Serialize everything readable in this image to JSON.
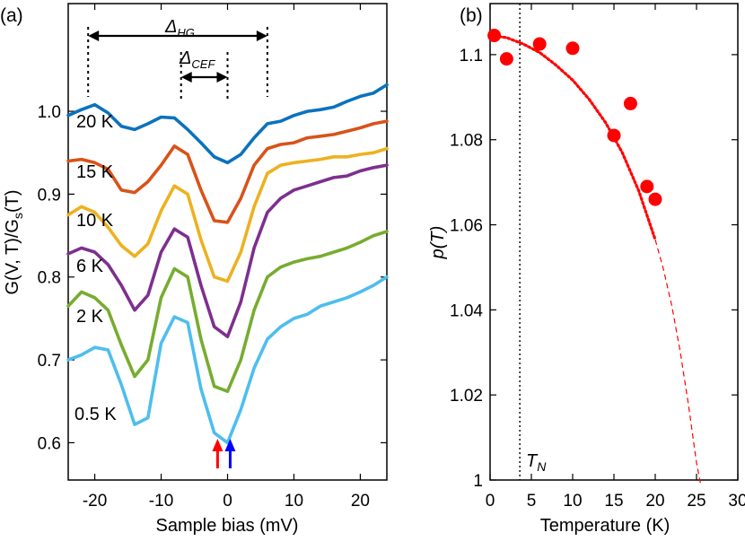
{
  "chart_data": [
    {
      "panel_label": "(a)",
      "type": "line",
      "xlabel": "Sample bias (mV)",
      "ylabel": "G(V, T)/G",
      "ylabel_sub": "s",
      "ylabel_tail": "(T)",
      "xlim": [
        -24,
        24
      ],
      "ylim": [
        0.555,
        1.13
      ],
      "xticks": [
        "-20",
        "-10",
        "0",
        "10",
        "20"
      ],
      "yticks": [
        "0.6",
        "0.7",
        "0.8",
        "0.9",
        "1.0"
      ],
      "annotations": {
        "delta_hg": "Δ",
        "delta_hg_sub": "HG",
        "delta_cef": "Δ",
        "delta_cef_sub": "CEF",
        "delta_hg_range": [
          -21,
          6
        ],
        "delta_cef_range": [
          -7,
          0
        ]
      },
      "series": [
        {
          "name": "20 K",
          "color": "#0b72bd",
          "points": [
            [
              -24,
              0.995
            ],
            [
              -22,
              1.002
            ],
            [
              -20,
              1.008
            ],
            [
              -18,
              0.998
            ],
            [
              -16,
              0.982
            ],
            [
              -14,
              0.978
            ],
            [
              -12,
              0.985
            ],
            [
              -10,
              0.993
            ],
            [
              -8,
              0.992
            ],
            [
              -6,
              0.978
            ],
            [
              -4,
              0.962
            ],
            [
              -2,
              0.945
            ],
            [
              0,
              0.938
            ],
            [
              2,
              0.948
            ],
            [
              4,
              0.968
            ],
            [
              6,
              0.985
            ],
            [
              8,
              0.988
            ],
            [
              10,
              0.995
            ],
            [
              12,
              1.0
            ],
            [
              14,
              1.002
            ],
            [
              16,
              1.005
            ],
            [
              18,
              1.012
            ],
            [
              20,
              1.018
            ],
            [
              22,
              1.022
            ],
            [
              24,
              1.032
            ]
          ]
        },
        {
          "name": "15 K",
          "color": "#d85319",
          "points": [
            [
              -24,
              0.94
            ],
            [
              -22,
              0.942
            ],
            [
              -20,
              0.938
            ],
            [
              -18,
              0.93
            ],
            [
              -16,
              0.905
            ],
            [
              -14,
              0.902
            ],
            [
              -12,
              0.915
            ],
            [
              -10,
              0.935
            ],
            [
              -8,
              0.958
            ],
            [
              -6,
              0.948
            ],
            [
              -4,
              0.905
            ],
            [
              -2,
              0.868
            ],
            [
              0,
              0.866
            ],
            [
              2,
              0.895
            ],
            [
              4,
              0.935
            ],
            [
              6,
              0.955
            ],
            [
              8,
              0.96
            ],
            [
              10,
              0.962
            ],
            [
              12,
              0.968
            ],
            [
              14,
              0.97
            ],
            [
              16,
              0.972
            ],
            [
              18,
              0.976
            ],
            [
              20,
              0.98
            ],
            [
              22,
              0.985
            ],
            [
              24,
              0.988
            ]
          ]
        },
        {
          "name": "10 K",
          "color": "#edb120",
          "points": [
            [
              -24,
              0.875
            ],
            [
              -22,
              0.885
            ],
            [
              -20,
              0.878
            ],
            [
              -18,
              0.86
            ],
            [
              -16,
              0.838
            ],
            [
              -14,
              0.825
            ],
            [
              -12,
              0.84
            ],
            [
              -10,
              0.88
            ],
            [
              -8,
              0.91
            ],
            [
              -6,
              0.9
            ],
            [
              -4,
              0.845
            ],
            [
              -2,
              0.8
            ],
            [
              0,
              0.795
            ],
            [
              2,
              0.83
            ],
            [
              4,
              0.885
            ],
            [
              6,
              0.925
            ],
            [
              8,
              0.935
            ],
            [
              10,
              0.938
            ],
            [
              12,
              0.94
            ],
            [
              14,
              0.942
            ],
            [
              16,
              0.945
            ],
            [
              18,
              0.945
            ],
            [
              20,
              0.948
            ],
            [
              22,
              0.95
            ],
            [
              24,
              0.955
            ]
          ]
        },
        {
          "name": "6 K",
          "color": "#7e2f8e",
          "points": [
            [
              -24,
              0.828
            ],
            [
              -22,
              0.835
            ],
            [
              -20,
              0.83
            ],
            [
              -18,
              0.815
            ],
            [
              -16,
              0.79
            ],
            [
              -14,
              0.76
            ],
            [
              -12,
              0.778
            ],
            [
              -10,
              0.83
            ],
            [
              -8,
              0.858
            ],
            [
              -6,
              0.848
            ],
            [
              -4,
              0.79
            ],
            [
              -2,
              0.74
            ],
            [
              0,
              0.728
            ],
            [
              2,
              0.77
            ],
            [
              4,
              0.835
            ],
            [
              6,
              0.878
            ],
            [
              8,
              0.895
            ],
            [
              10,
              0.905
            ],
            [
              12,
              0.91
            ],
            [
              14,
              0.915
            ],
            [
              16,
              0.92
            ],
            [
              18,
              0.922
            ],
            [
              20,
              0.928
            ],
            [
              22,
              0.932
            ],
            [
              24,
              0.935
            ]
          ]
        },
        {
          "name": "2 K",
          "color": "#77ac30",
          "points": [
            [
              -24,
              0.765
            ],
            [
              -22,
              0.782
            ],
            [
              -20,
              0.775
            ],
            [
              -18,
              0.76
            ],
            [
              -16,
              0.718
            ],
            [
              -14,
              0.68
            ],
            [
              -12,
              0.7
            ],
            [
              -10,
              0.775
            ],
            [
              -8,
              0.81
            ],
            [
              -6,
              0.8
            ],
            [
              -4,
              0.725
            ],
            [
              -2,
              0.668
            ],
            [
              0,
              0.662
            ],
            [
              2,
              0.7
            ],
            [
              4,
              0.76
            ],
            [
              6,
              0.8
            ],
            [
              8,
              0.812
            ],
            [
              10,
              0.818
            ],
            [
              12,
              0.822
            ],
            [
              14,
              0.825
            ],
            [
              16,
              0.83
            ],
            [
              18,
              0.835
            ],
            [
              20,
              0.842
            ],
            [
              22,
              0.85
            ],
            [
              24,
              0.855
            ]
          ]
        },
        {
          "name": "0.5 K",
          "color": "#4dbeee",
          "points": [
            [
              -24,
              0.7
            ],
            [
              -22,
              0.706
            ],
            [
              -20,
              0.715
            ],
            [
              -18,
              0.712
            ],
            [
              -16,
              0.67
            ],
            [
              -14,
              0.622
            ],
            [
              -12,
              0.63
            ],
            [
              -10,
              0.72
            ],
            [
              -8,
              0.752
            ],
            [
              -6,
              0.745
            ],
            [
              -4,
              0.665
            ],
            [
              -2,
              0.612
            ],
            [
              0,
              0.6
            ],
            [
              2,
              0.64
            ],
            [
              4,
              0.69
            ],
            [
              6,
              0.725
            ],
            [
              8,
              0.74
            ],
            [
              10,
              0.75
            ],
            [
              12,
              0.755
            ],
            [
              14,
              0.765
            ],
            [
              16,
              0.77
            ],
            [
              18,
              0.775
            ],
            [
              20,
              0.782
            ],
            [
              22,
              0.79
            ],
            [
              24,
              0.8
            ]
          ]
        }
      ],
      "arrows": [
        {
          "x": -1.5,
          "color": "#ff0000"
        },
        {
          "x": 0.4,
          "color": "#0000ff"
        }
      ]
    },
    {
      "panel_label": "(b)",
      "type": "scatter",
      "xlabel": "Temperature (K)",
      "ylabel": "p(T)",
      "xlim": [
        0,
        30
      ],
      "ylim": [
        1.0,
        1.112
      ],
      "xticks": [
        "0",
        "5",
        "10",
        "15",
        "20",
        "25",
        "30"
      ],
      "yticks": [
        "1",
        "1.02",
        "1.04",
        "1.06",
        "1.08",
        "1.1"
      ],
      "vline_x": 3.6,
      "vline_label": "T",
      "vline_label_sub": "N",
      "marker_color": "#ff0000",
      "points": [
        [
          0.5,
          1.1045
        ],
        [
          2,
          1.099
        ],
        [
          6,
          1.1025
        ],
        [
          10,
          1.1015
        ],
        [
          15,
          1.081
        ],
        [
          17,
          1.0885
        ],
        [
          19,
          1.069
        ],
        [
          20,
          1.066
        ]
      ],
      "fit_color": "#ff0000",
      "fit": [
        [
          0,
          1.1045
        ],
        [
          2,
          1.104
        ],
        [
          4,
          1.1025
        ],
        [
          6,
          1.1005
        ],
        [
          8,
          1.0975
        ],
        [
          10,
          1.094
        ],
        [
          12,
          1.0895
        ],
        [
          14,
          1.084
        ],
        [
          16,
          1.077
        ],
        [
          18,
          1.068
        ],
        [
          20,
          1.0565
        ],
        [
          21,
          1.0495
        ],
        [
          22,
          1.041
        ],
        [
          23,
          1.0305
        ],
        [
          24,
          1.018
        ],
        [
          25,
          1.004
        ],
        [
          25.5,
          0.999
        ]
      ],
      "fit_dense_until": 20
    }
  ]
}
